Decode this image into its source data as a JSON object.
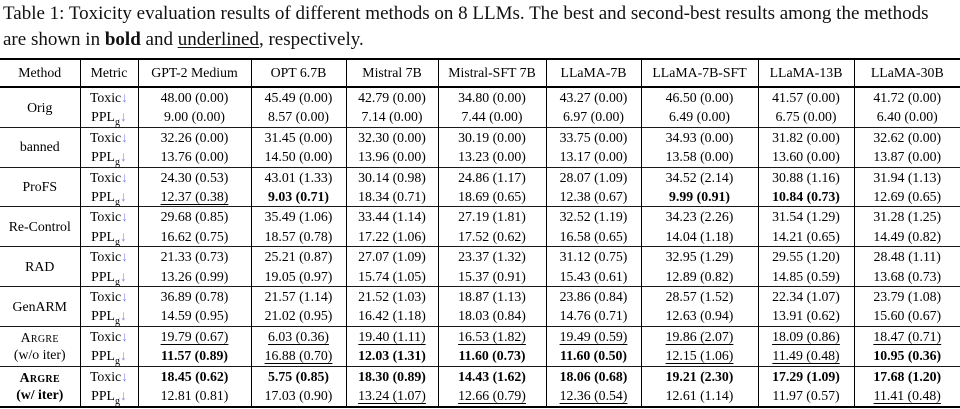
{
  "caption": {
    "prefix": "Table 1: Toxicity evaluation results of different methods on 8 LLMs. The best and second-best results among the methods are shown in ",
    "bold_word": "bold",
    "and_text": " and ",
    "underlined_word": "underlined",
    "suffix": ", respectively."
  },
  "colors": {
    "arrow": "#8b8bf0",
    "text": "#000000",
    "background": "#ffffff"
  },
  "table": {
    "columns": [
      "Method",
      "Metric",
      "GPT-2 Medium",
      "OPT 6.7B",
      "Mistral 7B",
      "Mistral-SFT 7B",
      "LLaMA-7B",
      "LLaMA-7B-SFT",
      "LLaMA-13B",
      "LLaMA-30B"
    ],
    "metrics": {
      "toxic": {
        "label": "Toxic"
      },
      "ppl": {
        "label": "PPL",
        "sub": "g"
      },
      "arrow": "↓"
    },
    "rows": [
      {
        "method": {
          "lines": [
            "Orig"
          ],
          "smallcaps": false,
          "bold": false
        },
        "toxic": [
          [
            "48.00 (0.00)",
            "n"
          ],
          [
            "45.49 (0.00)",
            "n"
          ],
          [
            "42.79 (0.00)",
            "n"
          ],
          [
            "34.80 (0.00)",
            "n"
          ],
          [
            "43.27 (0.00)",
            "n"
          ],
          [
            "46.50 (0.00)",
            "n"
          ],
          [
            "41.57 (0.00)",
            "n"
          ],
          [
            "41.72 (0.00)",
            "n"
          ]
        ],
        "ppl": [
          [
            "9.00 (0.00)",
            "n"
          ],
          [
            "8.57 (0.00)",
            "n"
          ],
          [
            "7.14 (0.00)",
            "n"
          ],
          [
            "7.44 (0.00)",
            "n"
          ],
          [
            "6.97 (0.00)",
            "n"
          ],
          [
            "6.49 (0.00)",
            "n"
          ],
          [
            "6.75 (0.00)",
            "n"
          ],
          [
            "6.40 (0.00)",
            "n"
          ]
        ]
      },
      {
        "method": {
          "lines": [
            "banned"
          ],
          "smallcaps": false,
          "bold": false
        },
        "toxic": [
          [
            "32.26 (0.00)",
            "n"
          ],
          [
            "31.45 (0.00)",
            "n"
          ],
          [
            "32.30 (0.00)",
            "n"
          ],
          [
            "30.19 (0.00)",
            "n"
          ],
          [
            "33.75 (0.00)",
            "n"
          ],
          [
            "34.93 (0.00)",
            "n"
          ],
          [
            "31.82 (0.00)",
            "n"
          ],
          [
            "32.62 (0.00)",
            "n"
          ]
        ],
        "ppl": [
          [
            "13.76 (0.00)",
            "n"
          ],
          [
            "14.50 (0.00)",
            "n"
          ],
          [
            "13.96 (0.00)",
            "n"
          ],
          [
            "13.23 (0.00)",
            "n"
          ],
          [
            "13.17 (0.00)",
            "n"
          ],
          [
            "13.58 (0.00)",
            "n"
          ],
          [
            "13.60 (0.00)",
            "n"
          ],
          [
            "13.87 (0.00)",
            "n"
          ]
        ]
      },
      {
        "method": {
          "lines": [
            "ProFS"
          ],
          "smallcaps": false,
          "bold": false
        },
        "toxic": [
          [
            "24.30 (0.53)",
            "n"
          ],
          [
            "43.01 (1.33)",
            "n"
          ],
          [
            "30.14 (0.98)",
            "n"
          ],
          [
            "24.86 (1.17)",
            "n"
          ],
          [
            "28.07 (1.09)",
            "n"
          ],
          [
            "34.52 (2.14)",
            "n"
          ],
          [
            "30.88 (1.16)",
            "n"
          ],
          [
            "31.94 (1.13)",
            "n"
          ]
        ],
        "ppl": [
          [
            "12.37 (0.38)",
            "u"
          ],
          [
            "9.03 (0.71)",
            "b"
          ],
          [
            "18.34 (0.71)",
            "n"
          ],
          [
            "18.69 (0.65)",
            "n"
          ],
          [
            "12.38 (0.67)",
            "n"
          ],
          [
            "9.99 (0.91)",
            "b"
          ],
          [
            "10.84 (0.73)",
            "b"
          ],
          [
            "12.69 (0.65)",
            "n"
          ]
        ]
      },
      {
        "method": {
          "lines": [
            "Re-Control"
          ],
          "smallcaps": false,
          "bold": false
        },
        "toxic": [
          [
            "29.68 (0.85)",
            "n"
          ],
          [
            "35.49 (1.06)",
            "n"
          ],
          [
            "33.44 (1.14)",
            "n"
          ],
          [
            "27.19 (1.81)",
            "n"
          ],
          [
            "32.52 (1.19)",
            "n"
          ],
          [
            "34.23 (2.26)",
            "n"
          ],
          [
            "31.54 (1.29)",
            "n"
          ],
          [
            "31.28 (1.25)",
            "n"
          ]
        ],
        "ppl": [
          [
            "16.62 (0.75)",
            "n"
          ],
          [
            "18.57 (0.78)",
            "n"
          ],
          [
            "17.22 (1.06)",
            "n"
          ],
          [
            "17.52 (0.62)",
            "n"
          ],
          [
            "16.58 (0.65)",
            "n"
          ],
          [
            "14.04 (1.18)",
            "n"
          ],
          [
            "14.21 (0.65)",
            "n"
          ],
          [
            "14.49 (0.82)",
            "n"
          ]
        ]
      },
      {
        "method": {
          "lines": [
            "RAD"
          ],
          "smallcaps": false,
          "bold": false
        },
        "toxic": [
          [
            "21.33 (0.73)",
            "n"
          ],
          [
            "25.21 (0.87)",
            "n"
          ],
          [
            "27.07 (1.09)",
            "n"
          ],
          [
            "23.37 (1.32)",
            "n"
          ],
          [
            "31.12 (0.75)",
            "n"
          ],
          [
            "32.95 (1.29)",
            "n"
          ],
          [
            "29.55 (1.20)",
            "n"
          ],
          [
            "28.48 (1.11)",
            "n"
          ]
        ],
        "ppl": [
          [
            "13.26 (0.99)",
            "n"
          ],
          [
            "19.05 (0.97)",
            "n"
          ],
          [
            "15.74 (1.05)",
            "n"
          ],
          [
            "15.37 (0.91)",
            "n"
          ],
          [
            "15.43 (0.61)",
            "n"
          ],
          [
            "12.89 (0.82)",
            "n"
          ],
          [
            "14.85 (0.59)",
            "n"
          ],
          [
            "13.68 (0.73)",
            "n"
          ]
        ]
      },
      {
        "method": {
          "lines": [
            "GenARM"
          ],
          "smallcaps": false,
          "bold": false
        },
        "toxic": [
          [
            "36.89 (0.78)",
            "n"
          ],
          [
            "21.57 (1.14)",
            "n"
          ],
          [
            "21.52 (1.03)",
            "n"
          ],
          [
            "18.87 (1.13)",
            "n"
          ],
          [
            "23.86 (0.84)",
            "n"
          ],
          [
            "28.57 (1.52)",
            "n"
          ],
          [
            "22.34 (1.07)",
            "n"
          ],
          [
            "23.79 (1.08)",
            "n"
          ]
        ],
        "ppl": [
          [
            "14.59 (0.95)",
            "n"
          ],
          [
            "21.02 (0.95)",
            "n"
          ],
          [
            "16.42 (1.18)",
            "n"
          ],
          [
            "18.03 (0.84)",
            "n"
          ],
          [
            "14.76 (0.71)",
            "n"
          ],
          [
            "12.63 (0.94)",
            "n"
          ],
          [
            "13.91 (0.62)",
            "n"
          ],
          [
            "15.60 (0.67)",
            "n"
          ]
        ]
      },
      {
        "method": {
          "lines": [
            "Argre",
            "(w/o iter)"
          ],
          "smallcaps": true,
          "bold": false
        },
        "toxic": [
          [
            "19.79 (0.67)",
            "u"
          ],
          [
            "6.03 (0.36)",
            "u"
          ],
          [
            "19.40 (1.11)",
            "u"
          ],
          [
            "16.53 (1.82)",
            "u"
          ],
          [
            "19.49 (0.59)",
            "u"
          ],
          [
            "19.86 (2.07)",
            "u"
          ],
          [
            "18.09 (0.86)",
            "u"
          ],
          [
            "18.47 (0.71)",
            "u"
          ]
        ],
        "ppl": [
          [
            "11.57 (0.89)",
            "b"
          ],
          [
            "16.88 (0.70)",
            "u"
          ],
          [
            "12.03 (1.31)",
            "b"
          ],
          [
            "11.60 (0.73)",
            "b"
          ],
          [
            "11.60 (0.50)",
            "b"
          ],
          [
            "12.15 (1.06)",
            "u"
          ],
          [
            "11.49 (0.48)",
            "u"
          ],
          [
            "10.95 (0.36)",
            "b"
          ]
        ]
      },
      {
        "method": {
          "lines": [
            "Argre",
            "(w/ iter)"
          ],
          "smallcaps": true,
          "bold": true
        },
        "toxic": [
          [
            "18.45 (0.62)",
            "b"
          ],
          [
            "5.75 (0.85)",
            "b"
          ],
          [
            "18.30 (0.89)",
            "b"
          ],
          [
            "14.43 (1.62)",
            "b"
          ],
          [
            "18.06 (0.68)",
            "b"
          ],
          [
            "19.21 (2.30)",
            "b"
          ],
          [
            "17.29 (1.09)",
            "b"
          ],
          [
            "17.68 (1.20)",
            "b"
          ]
        ],
        "ppl": [
          [
            "12.81 (0.81)",
            "n"
          ],
          [
            "17.03 (0.90)",
            "n"
          ],
          [
            "13.24 (1.07)",
            "u"
          ],
          [
            "12.66 (0.79)",
            "u"
          ],
          [
            "12.36 (0.54)",
            "u"
          ],
          [
            "12.61 (1.14)",
            "n"
          ],
          [
            "11.97 (0.57)",
            "n"
          ],
          [
            "11.41 (0.48)",
            "u"
          ]
        ]
      }
    ]
  }
}
